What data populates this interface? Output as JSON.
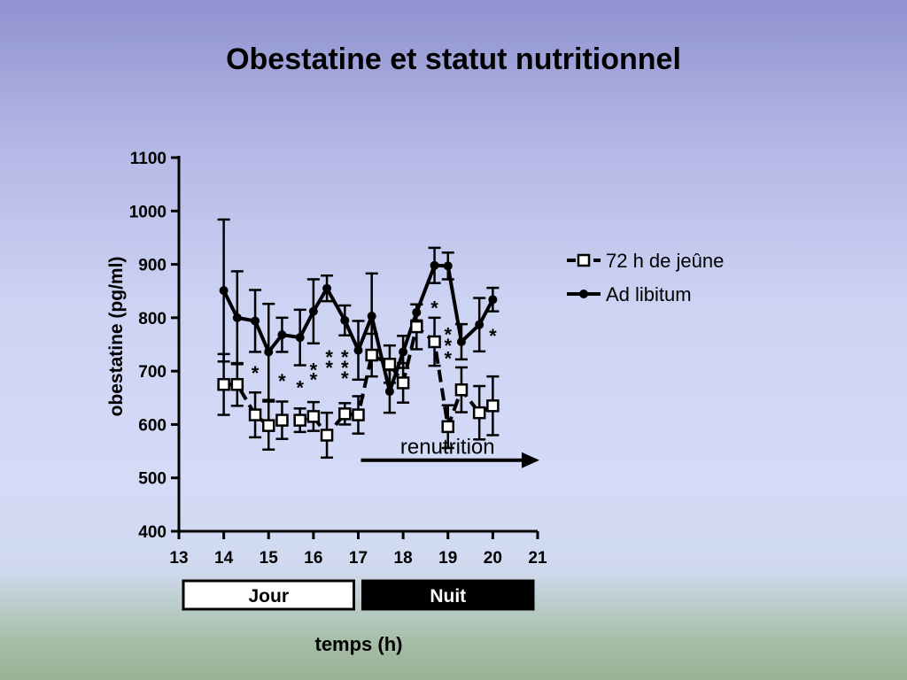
{
  "slide": {
    "title": "Obestatine et statut nutritionnel"
  },
  "chart_data": {
    "type": "line",
    "ylabel": "obestatine (pg/ml)",
    "xlabel": "temps (h)",
    "ylim": [
      400,
      1100
    ],
    "xlim": [
      13,
      21
    ],
    "yticks": [
      400,
      500,
      600,
      700,
      800,
      900,
      1000,
      1100
    ],
    "xticks": [
      13,
      14,
      15,
      16,
      17,
      18,
      19,
      20,
      21
    ],
    "legend_position": "right",
    "series": [
      {
        "name": "72 h de jeûne",
        "marker": "open-square",
        "line": "dashed",
        "x": [
          14,
          14.3,
          14.7,
          15,
          15.3,
          15.7,
          16,
          16.3,
          16.7,
          17,
          17.3,
          17.7,
          18,
          18.3,
          18.7,
          19,
          19.3,
          19.7,
          20
        ],
        "y": [
          675,
          675,
          618,
          598,
          608,
          608,
          615,
          580,
          620,
          618,
          730,
          713,
          678,
          783,
          755,
          596,
          665,
          622,
          635
        ],
        "err": [
          57,
          40,
          42,
          45,
          35,
          22,
          27,
          42,
          20,
          35,
          40,
          35,
          37,
          42,
          45,
          40,
          42,
          50,
          55
        ]
      },
      {
        "name": "Ad libitum",
        "marker": "filled-circle",
        "line": "solid",
        "x": [
          14,
          14.3,
          14.7,
          15,
          15.3,
          15.7,
          16,
          16.3,
          16.7,
          17,
          17.3,
          17.7,
          18,
          18.3,
          18.7,
          19,
          19.3,
          19.7,
          20
        ],
        "y": [
          851,
          800,
          794,
          736,
          768,
          763,
          812,
          855,
          795,
          739,
          803,
          662,
          736,
          810,
          898,
          897,
          755,
          787,
          834
        ],
        "err": [
          133,
          87,
          58,
          90,
          32,
          52,
          60,
          24,
          28,
          55,
          80,
          40,
          30,
          15,
          33,
          25,
          33,
          50,
          22
        ]
      }
    ],
    "significance": [
      {
        "x": 14.7,
        "y": 700,
        "label": "*"
      },
      {
        "x": 15.3,
        "y": 685,
        "label": "*"
      },
      {
        "x": 15.7,
        "y": 673,
        "label": "*"
      },
      {
        "x": 16,
        "y": 688,
        "label": "*"
      },
      {
        "x": 16,
        "y": 706,
        "label": "*"
      },
      {
        "x": 16.35,
        "y": 710,
        "label": "*"
      },
      {
        "x": 16.35,
        "y": 730,
        "label": "*"
      },
      {
        "x": 16.7,
        "y": 690,
        "label": "*"
      },
      {
        "x": 16.7,
        "y": 710,
        "label": "*"
      },
      {
        "x": 16.7,
        "y": 730,
        "label": "*"
      },
      {
        "x": 18.7,
        "y": 822,
        "label": "*"
      },
      {
        "x": 19,
        "y": 772,
        "label": "*"
      },
      {
        "x": 19,
        "y": 752,
        "label": "*"
      },
      {
        "x": 19,
        "y": 728,
        "label": "*"
      },
      {
        "x": 20,
        "y": 770,
        "label": "*"
      }
    ],
    "annotation": {
      "text": "renutrition",
      "arrow_from_x": 17,
      "arrow_to_x": 21,
      "y": 558
    },
    "time_bands": [
      {
        "label": "Jour",
        "from": 13,
        "to": 17,
        "fill": "#ffffff",
        "text_color": "#000000"
      },
      {
        "label": "Nuit",
        "from": 17,
        "to": 21,
        "fill": "#000000",
        "text_color": "#ffffff"
      }
    ]
  }
}
